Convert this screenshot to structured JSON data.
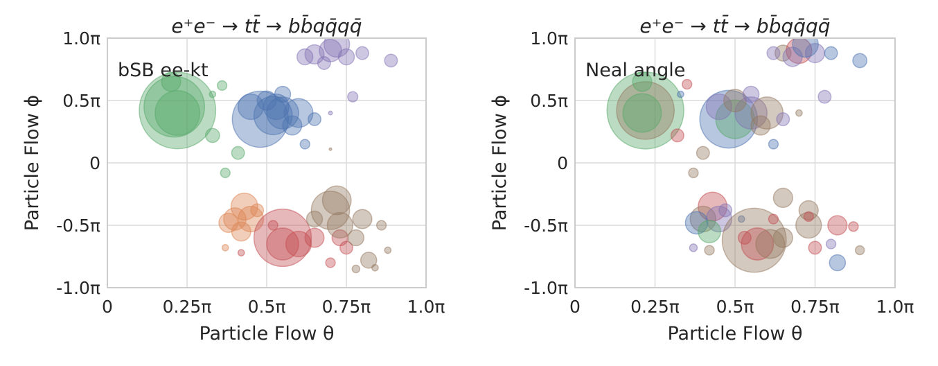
{
  "colors": {
    "blue": "#4c72b0",
    "orange": "#dd8452",
    "green": "#55a868",
    "red": "#c44e52",
    "purple": "#8172b3",
    "brown": "#937860",
    "grid": "#dcdcdc"
  },
  "chart_data": [
    {
      "type": "scatter",
      "title": "e⁺e⁻ → tt̄ → bb̄qq̄qq̄",
      "annotation": "bSB ee-kt",
      "xlabel": "Particle Flow θ",
      "ylabel": "Particle Flow ϕ",
      "xlim": [
        0,
        1
      ],
      "ylim": [
        -1,
        1
      ],
      "x_unit": "π",
      "y_unit": "π",
      "xticks": [
        "0",
        "0.25π",
        "0.5π",
        "0.75π",
        "1.0π"
      ],
      "xtick_values": [
        0,
        0.25,
        0.5,
        0.75,
        1.0
      ],
      "yticks": [
        "1.0π",
        "0.5π",
        "0",
        "-0.5π",
        "-1.0π"
      ],
      "ytick_values": [
        1,
        0.5,
        0,
        -0.5,
        -1
      ],
      "grid": true,
      "points": [
        [
          0.22,
          0.42,
          0.12,
          "green"
        ],
        [
          0.21,
          0.45,
          0.095,
          "green"
        ],
        [
          0.22,
          0.4,
          0.07,
          "green"
        ],
        [
          0.2,
          0.65,
          0.03,
          "green"
        ],
        [
          0.33,
          0.22,
          0.022,
          "green"
        ],
        [
          0.36,
          0.62,
          0.015,
          "green"
        ],
        [
          0.33,
          0.55,
          0.01,
          "green"
        ],
        [
          0.41,
          0.08,
          0.02,
          "green"
        ],
        [
          0.37,
          -0.08,
          0.015,
          "green"
        ],
        [
          0.48,
          0.35,
          0.088,
          "blue"
        ],
        [
          0.52,
          0.38,
          0.06,
          "blue"
        ],
        [
          0.55,
          0.4,
          0.05,
          "blue"
        ],
        [
          0.45,
          0.45,
          0.04,
          "blue"
        ],
        [
          0.6,
          0.4,
          0.045,
          "blue"
        ],
        [
          0.5,
          0.5,
          0.03,
          "blue"
        ],
        [
          0.55,
          0.55,
          0.025,
          "blue"
        ],
        [
          0.65,
          0.35,
          0.02,
          "blue"
        ],
        [
          0.62,
          0.15,
          0.015,
          "blue"
        ],
        [
          0.58,
          0.3,
          0.03,
          "blue"
        ],
        [
          0.53,
          0.45,
          0.04,
          "blue"
        ],
        [
          0.65,
          0.87,
          0.03,
          "purple"
        ],
        [
          0.7,
          0.9,
          0.035,
          "purple"
        ],
        [
          0.75,
          0.85,
          0.025,
          "purple"
        ],
        [
          0.68,
          0.8,
          0.02,
          "purple"
        ],
        [
          0.72,
          0.95,
          0.04,
          "purple"
        ],
        [
          0.8,
          0.88,
          0.02,
          "purple"
        ],
        [
          0.89,
          0.82,
          0.02,
          "purple"
        ],
        [
          0.77,
          0.53,
          0.016,
          "purple"
        ],
        [
          0.7,
          0.4,
          0.006,
          "purple"
        ],
        [
          0.62,
          0.85,
          0.025,
          "purple"
        ],
        [
          0.43,
          -0.35,
          0.042,
          "orange"
        ],
        [
          0.4,
          -0.45,
          0.035,
          "orange"
        ],
        [
          0.45,
          -0.45,
          0.04,
          "orange"
        ],
        [
          0.38,
          -0.48,
          0.03,
          "orange"
        ],
        [
          0.42,
          -0.55,
          0.03,
          "orange"
        ],
        [
          0.47,
          -0.38,
          0.02,
          "orange"
        ],
        [
          0.37,
          -0.68,
          0.01,
          "orange"
        ],
        [
          0.55,
          -0.6,
          0.09,
          "red"
        ],
        [
          0.55,
          -0.65,
          0.05,
          "red"
        ],
        [
          0.6,
          -0.65,
          0.04,
          "red"
        ],
        [
          0.65,
          -0.6,
          0.03,
          "red"
        ],
        [
          0.73,
          -0.6,
          0.025,
          "red"
        ],
        [
          0.7,
          -0.8,
          0.015,
          "red"
        ],
        [
          0.42,
          -0.72,
          0.01,
          "red"
        ],
        [
          0.52,
          -0.5,
          0.015,
          "red"
        ],
        [
          0.75,
          -0.68,
          0.02,
          "red"
        ],
        [
          0.7,
          -0.38,
          0.06,
          "brown"
        ],
        [
          0.72,
          -0.3,
          0.045,
          "brown"
        ],
        [
          0.73,
          -0.5,
          0.04,
          "brown"
        ],
        [
          0.8,
          -0.45,
          0.03,
          "brown"
        ],
        [
          0.78,
          -0.6,
          0.025,
          "brown"
        ],
        [
          0.82,
          -0.78,
          0.025,
          "brown"
        ],
        [
          0.88,
          -0.7,
          0.01,
          "brown"
        ],
        [
          0.86,
          -0.5,
          0.015,
          "brown"
        ],
        [
          0.78,
          -0.85,
          0.012,
          "brown"
        ],
        [
          0.84,
          -0.84,
          0.01,
          "brown"
        ],
        [
          0.7,
          0.11,
          0.004,
          "brown"
        ],
        [
          0.65,
          -0.45,
          0.025,
          "brown"
        ]
      ]
    },
    {
      "type": "scatter",
      "title": "e⁺e⁻ → tt̄ → bb̄qq̄qq̄",
      "annotation": "Neal angle",
      "xlabel": "Particle Flow θ",
      "ylabel": "Particle Flow ϕ",
      "xlim": [
        0,
        1
      ],
      "ylim": [
        -1,
        1
      ],
      "x_unit": "π",
      "y_unit": "π",
      "xticks": [
        "0",
        "0.25π",
        "0.5π",
        "0.75π",
        "1.0π"
      ],
      "xtick_values": [
        0,
        0.25,
        0.5,
        0.75,
        1.0
      ],
      "yticks": [
        "1.0π",
        "0.5π",
        "0",
        "-0.5π",
        "-1.0π"
      ],
      "ytick_values": [
        1,
        0.5,
        0,
        -0.5,
        -1
      ],
      "grid": true,
      "points": [
        [
          0.22,
          0.42,
          0.12,
          "green"
        ],
        [
          0.22,
          0.42,
          0.09,
          "brown"
        ],
        [
          0.21,
          0.4,
          0.06,
          "green"
        ],
        [
          0.21,
          0.65,
          0.03,
          "green"
        ],
        [
          0.32,
          0.22,
          0.02,
          "red"
        ],
        [
          0.35,
          0.63,
          0.015,
          "red"
        ],
        [
          0.33,
          0.55,
          0.01,
          "blue"
        ],
        [
          0.4,
          0.08,
          0.02,
          "brown"
        ],
        [
          0.37,
          -0.08,
          0.015,
          "brown"
        ],
        [
          0.48,
          0.35,
          0.09,
          "blue"
        ],
        [
          0.5,
          0.35,
          0.06,
          "green"
        ],
        [
          0.55,
          0.4,
          0.05,
          "purple"
        ],
        [
          0.45,
          0.45,
          0.04,
          "purple"
        ],
        [
          0.6,
          0.4,
          0.05,
          "brown"
        ],
        [
          0.5,
          0.5,
          0.035,
          "brown"
        ],
        [
          0.55,
          0.55,
          0.025,
          "purple"
        ],
        [
          0.65,
          0.35,
          0.02,
          "purple"
        ],
        [
          0.62,
          0.15,
          0.015,
          "blue"
        ],
        [
          0.58,
          0.3,
          0.03,
          "brown"
        ],
        [
          0.7,
          0.4,
          0.01,
          "brown"
        ],
        [
          0.65,
          0.88,
          0.025,
          "brown"
        ],
        [
          0.7,
          0.9,
          0.04,
          "red"
        ],
        [
          0.75,
          0.88,
          0.03,
          "purple"
        ],
        [
          0.68,
          0.85,
          0.03,
          "purple"
        ],
        [
          0.72,
          0.95,
          0.04,
          "blue"
        ],
        [
          0.8,
          0.88,
          0.02,
          "blue"
        ],
        [
          0.89,
          0.82,
          0.022,
          "blue"
        ],
        [
          0.78,
          0.53,
          0.02,
          "purple"
        ],
        [
          0.62,
          0.88,
          0.02,
          "purple"
        ],
        [
          0.43,
          -0.35,
          0.045,
          "red"
        ],
        [
          0.4,
          -0.45,
          0.04,
          "brown"
        ],
        [
          0.45,
          -0.45,
          0.04,
          "purple"
        ],
        [
          0.38,
          -0.48,
          0.035,
          "blue"
        ],
        [
          0.42,
          -0.55,
          0.035,
          "green"
        ],
        [
          0.47,
          -0.38,
          0.02,
          "purple"
        ],
        [
          0.37,
          -0.68,
          0.012,
          "purple"
        ],
        [
          0.42,
          -0.7,
          0.015,
          "brown"
        ],
        [
          0.52,
          -0.45,
          0.01,
          "blue"
        ],
        [
          0.56,
          -0.62,
          0.1,
          "brown"
        ],
        [
          0.57,
          -0.65,
          0.05,
          "red"
        ],
        [
          0.61,
          -0.65,
          0.045,
          "brown"
        ],
        [
          0.65,
          -0.6,
          0.03,
          "brown"
        ],
        [
          0.73,
          -0.5,
          0.04,
          "brown"
        ],
        [
          0.75,
          -0.68,
          0.02,
          "red"
        ],
        [
          0.82,
          -0.5,
          0.03,
          "red"
        ],
        [
          0.87,
          -0.51,
          0.015,
          "red"
        ],
        [
          0.8,
          -0.65,
          0.015,
          "purple"
        ],
        [
          0.82,
          -0.8,
          0.025,
          "blue"
        ],
        [
          0.89,
          -0.7,
          0.014,
          "brown"
        ],
        [
          0.65,
          -0.28,
          0.03,
          "brown"
        ],
        [
          0.73,
          -0.38,
          0.03,
          "brown"
        ],
        [
          0.73,
          -0.43,
          0.015,
          "red"
        ],
        [
          0.62,
          -0.45,
          0.015,
          "red"
        ],
        [
          0.53,
          -0.6,
          0.02,
          "red"
        ]
      ]
    }
  ]
}
